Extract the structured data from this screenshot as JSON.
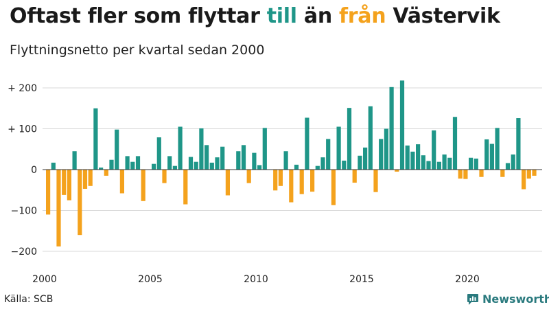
{
  "header": {
    "title_parts": [
      "Oftast fler som flyttar ",
      "till",
      " än ",
      "från",
      " Västervik"
    ],
    "subtitle": "Flyttningsnetto per kvartal sedan 2000"
  },
  "footer": {
    "source": "Källa: SCB",
    "brand": "Newsworthy"
  },
  "colors": {
    "positive": "#1f9688",
    "negative": "#f4a21d",
    "grid": "#d9d9d9",
    "brand": "#2a7a7e"
  },
  "chart_data": {
    "type": "bar",
    "title": "Oftast fler som flyttar till än från Västervik",
    "subtitle": "Flyttningsnetto per kvartal sedan 2000",
    "x_start": "2000 Q1",
    "x_tick_labels": [
      "2000",
      "2005",
      "2010",
      "2015",
      "2020"
    ],
    "y_tick_labels": [
      "+ 200",
      "+ 100",
      "0",
      "−100",
      "−200"
    ],
    "y_ticks": [
      200,
      100,
      0,
      -100,
      -200
    ],
    "ylim": [
      -220,
      220
    ],
    "grid": true,
    "legend": "none",
    "values": [
      -110,
      17,
      -188,
      -62,
      -75,
      45,
      -160,
      -47,
      -40,
      150,
      5,
      -15,
      24,
      98,
      -58,
      33,
      19,
      33,
      -77,
      0,
      14,
      79,
      -33,
      33,
      9,
      105,
      -85,
      31,
      19,
      101,
      60,
      17,
      30,
      56,
      -63,
      0,
      45,
      60,
      -33,
      41,
      11,
      102,
      0,
      -51,
      -40,
      45,
      -80,
      12,
      -60,
      127,
      -54,
      9,
      30,
      75,
      -87,
      105,
      22,
      151,
      -32,
      34,
      54,
      155,
      -55,
      75,
      100,
      202,
      -5,
      218,
      59,
      44,
      62,
      35,
      21,
      96,
      19,
      37,
      29,
      129,
      -22,
      -23,
      29,
      27,
      -18,
      74,
      63,
      102,
      -18,
      16,
      37,
      126,
      -48,
      -22,
      -15
    ]
  }
}
